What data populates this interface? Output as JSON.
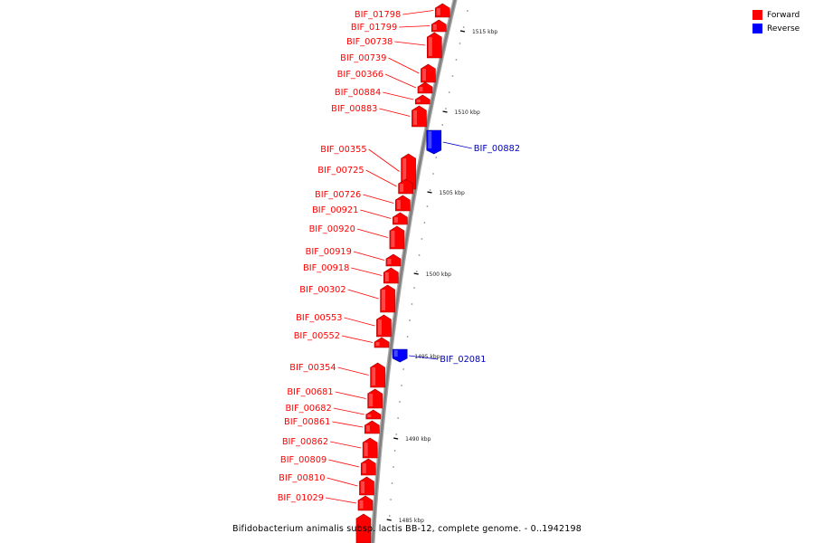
{
  "colors": {
    "forward": "#ff0000",
    "reverse": "#0000ff",
    "backbone": "#808080"
  },
  "legend": {
    "forward_label": "Forward",
    "reverse_label": "Reverse"
  },
  "caption": "Bifidobacterium animalis subsp. lactis BB-12, complete genome. - 0..1942198",
  "ticks": [
    "1515 kbp",
    "1510 kbp",
    "1505 kbp",
    "1500 kbp",
    "1495 kbp",
    "1490 kbp",
    "1485 kbp"
  ],
  "genes": [
    {
      "name": "BIF_01798",
      "strand": "forward"
    },
    {
      "name": "BIF_01799",
      "strand": "forward"
    },
    {
      "name": "BIF_00738",
      "strand": "forward"
    },
    {
      "name": "BIF_00739",
      "strand": "forward"
    },
    {
      "name": "BIF_00366",
      "strand": "forward"
    },
    {
      "name": "BIF_00884",
      "strand": "forward"
    },
    {
      "name": "BIF_00883",
      "strand": "forward"
    },
    {
      "name": "BIF_00882",
      "strand": "reverse"
    },
    {
      "name": "BIF_00355",
      "strand": "forward"
    },
    {
      "name": "BIF_00725",
      "strand": "forward"
    },
    {
      "name": "BIF_00726",
      "strand": "forward"
    },
    {
      "name": "BIF_00921",
      "strand": "forward"
    },
    {
      "name": "BIF_00920",
      "strand": "forward"
    },
    {
      "name": "BIF_00919",
      "strand": "forward"
    },
    {
      "name": "BIF_00918",
      "strand": "forward"
    },
    {
      "name": "BIF_00302",
      "strand": "forward"
    },
    {
      "name": "BIF_00553",
      "strand": "forward"
    },
    {
      "name": "BIF_00552",
      "strand": "forward"
    },
    {
      "name": "BIF_02081",
      "strand": "reverse"
    },
    {
      "name": "BIF_00354",
      "strand": "forward"
    },
    {
      "name": "BIF_00681",
      "strand": "forward"
    },
    {
      "name": "BIF_00682",
      "strand": "forward"
    },
    {
      "name": "BIF_00861",
      "strand": "forward"
    },
    {
      "name": "BIF_00862",
      "strand": "forward"
    },
    {
      "name": "BIF_00809",
      "strand": "forward"
    },
    {
      "name": "BIF_00810",
      "strand": "forward"
    },
    {
      "name": "BIF_01029",
      "strand": "forward"
    }
  ]
}
